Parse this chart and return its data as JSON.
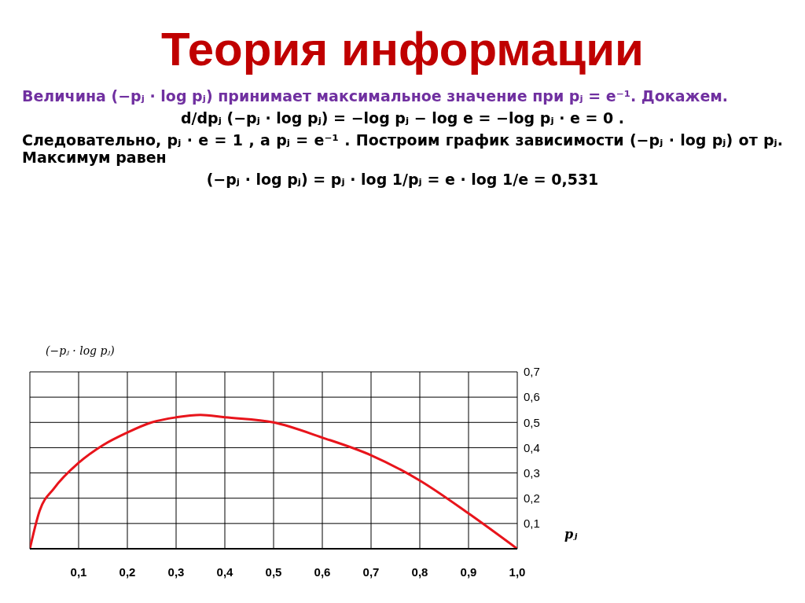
{
  "chart_data": {
    "type": "line",
    "title": "Теория информации",
    "annotations": [
      "Величина (−pⱼ · log pⱼ) принимает максимальное значение при pⱼ = e⁻¹. Докажем.",
      "d/dpⱼ (−pⱼ · log pⱼ) = −log pⱼ − log e = −log pⱼ · e = 0 .",
      "Следовательно, pⱼ · e = 1 , а pⱼ = e⁻¹ . Построим график зависимости (−pⱼ · log pⱼ) от pⱼ. Максимум равен",
      "(−pⱼ · log pⱼ) = pⱼ · log 1/pⱼ = e · log 1/e = 0,531"
    ],
    "xlabel": "pⱼ",
    "ylabel": "(−pⱼ · log pⱼ)",
    "x": [
      0,
      0.02,
      0.05,
      0.1,
      0.15,
      0.2,
      0.25,
      0.3,
      0.35,
      0.4,
      0.5,
      0.6,
      0.7,
      0.8,
      0.9,
      1.0
    ],
    "series": [
      {
        "color": "#e8141b",
        "values": [
          0,
          0.15,
          0.24,
          0.34,
          0.41,
          0.46,
          0.5,
          0.52,
          0.53,
          0.52,
          0.5,
          0.44,
          0.37,
          0.27,
          0.14,
          0
        ]
      }
    ],
    "xlim": [
      0,
      1
    ],
    "ylim": [
      0,
      0.7
    ],
    "xticks": [
      {
        "value": 0,
        "label": null
      },
      {
        "value": 0.1,
        "label": "0,1"
      },
      {
        "value": 0.2,
        "label": "0,2"
      },
      {
        "value": 0.3,
        "label": "0,3"
      },
      {
        "value": 0.4,
        "label": "0,4"
      },
      {
        "value": 0.5,
        "label": "0,5"
      },
      {
        "value": 0.6,
        "label": "0,6"
      },
      {
        "value": 0.7,
        "label": "0,7"
      },
      {
        "value": 0.8,
        "label": "0,8"
      },
      {
        "value": 0.9,
        "label": "0,9"
      },
      {
        "value": 1,
        "label": "1,0"
      }
    ],
    "yticks": [
      {
        "value": 0,
        "label": null
      },
      {
        "value": 0.1,
        "label": "0,1"
      },
      {
        "value": 0.2,
        "label": "0,2"
      },
      {
        "value": 0.3,
        "label": "0,3"
      },
      {
        "value": 0.4,
        "label": "0,4"
      },
      {
        "value": 0.5,
        "label": "0,5"
      },
      {
        "value": 0.6,
        "label": "0,6"
      },
      {
        "value": 0.7,
        "label": "0,7"
      }
    ],
    "grid": true,
    "marker": "none",
    "line_style": "solid"
  }
}
